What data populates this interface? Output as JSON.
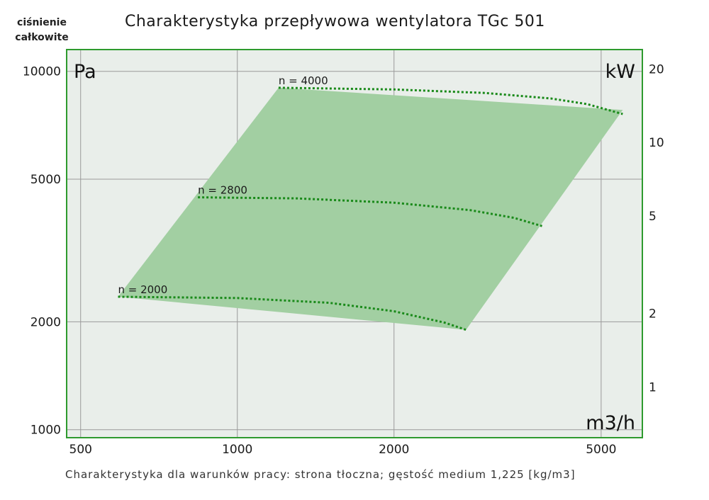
{
  "title": "Charakterystyka przepływowa wentylatora TGc 501",
  "y_axis_label": [
    "ciśnienie",
    "całkowite"
  ],
  "footnote": "Charakterystyka dla warunków pracy: strona tłoczna; gęstość medium 1,225 [kg/m3]",
  "colors": {
    "frame": "#2e9a2e",
    "plot_bg": "#e9eeea",
    "region": "#a2cfa2",
    "curve": "#1a8a1a",
    "grid": "#9a9a9a"
  },
  "chart_data": {
    "type": "line",
    "title": "Charakterystyka przepływowa wentylatora TGc 501",
    "xscale": "log",
    "yscale": "log",
    "xlim": [
      470,
      6000
    ],
    "ylim": [
      950,
      11500
    ],
    "y2lim": [
      0.62,
      24
    ],
    "x_ticks": [
      500,
      1000,
      2000,
      5000
    ],
    "y_ticks": [
      1000,
      2000,
      5000,
      10000
    ],
    "y2_ticks": [
      1,
      2,
      5,
      10,
      20
    ],
    "x_unit_label": "m3/h",
    "y_unit_label": "Pa",
    "y2_unit_label": "kW",
    "grid": true,
    "operating_region": [
      [
        590,
        2350
      ],
      [
        1200,
        9000
      ],
      [
        5500,
        7800
      ],
      [
        2750,
        1900
      ]
    ],
    "series": [
      {
        "name": "n = 4000",
        "x": [
          1200,
          2000,
          3000,
          4000,
          4700,
          5500
        ],
        "y": [
          9000,
          8900,
          8700,
          8400,
          8100,
          7600
        ]
      },
      {
        "name": "n = 2800",
        "x": [
          840,
          1300,
          2000,
          2800,
          3400,
          3850
        ],
        "y": [
          4450,
          4420,
          4300,
          4100,
          3900,
          3700
        ]
      },
      {
        "name": "n = 2000",
        "x": [
          590,
          1000,
          1500,
          2000,
          2500,
          2750
        ],
        "y": [
          2350,
          2330,
          2260,
          2140,
          1990,
          1900
        ]
      }
    ]
  }
}
